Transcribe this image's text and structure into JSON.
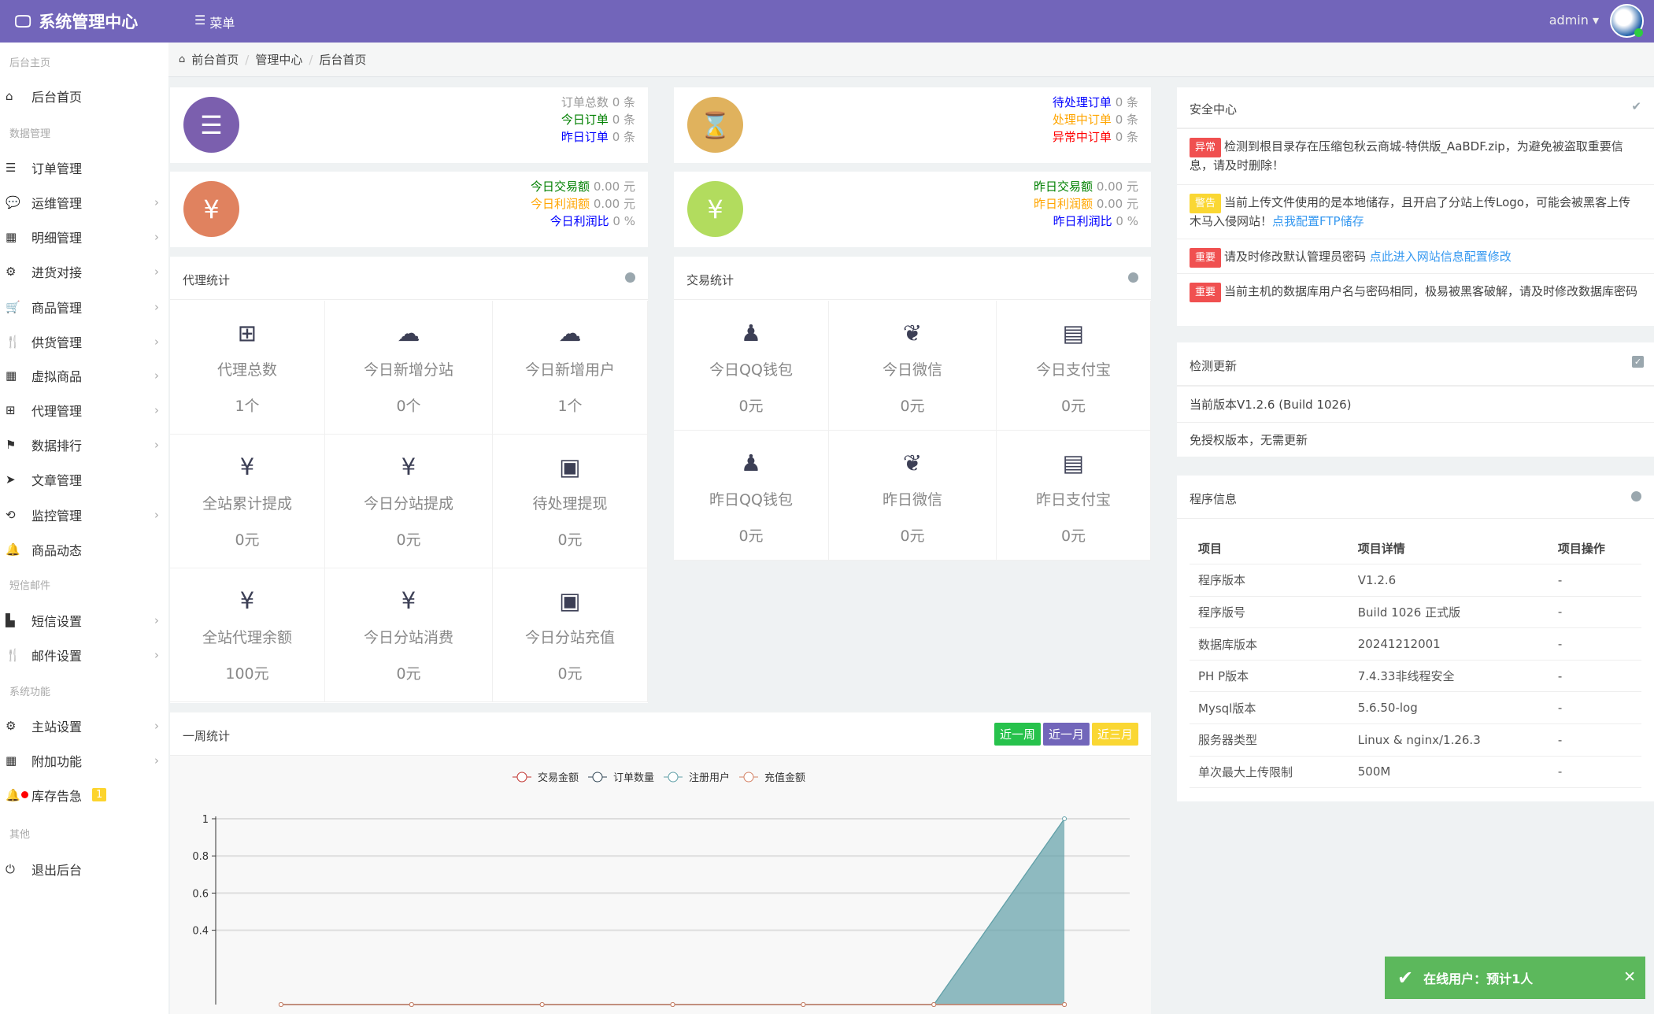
{
  "header": {
    "title": "系统管理中心",
    "menu_label": "菜单",
    "user": "admin"
  },
  "sidebar": {
    "sections": [
      {
        "label": "后台主页",
        "items": [
          {
            "label": "后台首页",
            "icon": "home-icon",
            "arrow": false
          }
        ]
      },
      {
        "label": "数据管理",
        "items": [
          {
            "label": "订单管理",
            "icon": "list-icon",
            "arrow": false
          },
          {
            "label": "运维管理",
            "icon": "comments-icon",
            "arrow": true
          },
          {
            "label": "明细管理",
            "icon": "calendar-icon",
            "arrow": true
          },
          {
            "label": "进货对接",
            "icon": "cogs-icon",
            "arrow": true
          },
          {
            "label": "商品管理",
            "icon": "cart-icon",
            "arrow": true
          },
          {
            "label": "供货管理",
            "icon": "cutlery-icon",
            "arrow": true
          },
          {
            "label": "虚拟商品",
            "icon": "grid-icon",
            "arrow": true
          },
          {
            "label": "代理管理",
            "icon": "sitemap-icon",
            "arrow": true
          },
          {
            "label": "数据排行",
            "icon": "flag-icon",
            "arrow": true
          },
          {
            "label": "文章管理",
            "icon": "send-icon",
            "arrow": false
          },
          {
            "label": "监控管理",
            "icon": "retweet-icon",
            "arrow": true
          },
          {
            "label": "商品动态",
            "icon": "bell-icon",
            "arrow": false
          }
        ]
      },
      {
        "label": "短信邮件",
        "items": [
          {
            "label": "短信设置",
            "icon": "chart-icon",
            "arrow": true
          },
          {
            "label": "邮件设置",
            "icon": "cutlery-icon",
            "arrow": true
          }
        ]
      },
      {
        "label": "系统功能",
        "items": [
          {
            "label": "主站设置",
            "icon": "gear-icon",
            "arrow": true
          },
          {
            "label": "附加功能",
            "icon": "calendar-icon",
            "arrow": true
          },
          {
            "label": "库存告急",
            "icon": "bell-icon",
            "arrow": false,
            "badge": "1"
          }
        ]
      },
      {
        "label": "其他",
        "items": [
          {
            "label": "退出后台",
            "icon": "power-icon",
            "arrow": false
          }
        ]
      }
    ]
  },
  "breadcrumb": [
    "前台首页",
    "管理中心",
    "后台首页"
  ],
  "summary": [
    {
      "color": "#7b5fae",
      "icon": "list-ol-icon",
      "glyph": "☰",
      "rows": [
        {
          "label": "订单总数",
          "value": "0 条",
          "color": "#999"
        },
        {
          "label": "今日订单",
          "value": "0 条",
          "color": "#008000"
        },
        {
          "label": "昨日订单",
          "value": "0 条",
          "color": "#0000ff"
        }
      ]
    },
    {
      "color": "#e0b25d",
      "icon": "hourglass-icon",
      "glyph": "⌛",
      "rows": [
        {
          "label": "待处理订单",
          "value": "0 条",
          "color": "#0000ff"
        },
        {
          "label": "处理中订单",
          "value": "0 条",
          "color": "#ffa500"
        },
        {
          "label": "异常中订单",
          "value": "0 条",
          "color": "#ff0000"
        }
      ]
    },
    {
      "color": "#e0825f",
      "icon": "yen-icon",
      "glyph": "¥",
      "rows": [
        {
          "label": "今日交易额",
          "value": "0.00 元",
          "color": "#008000"
        },
        {
          "label": "今日利润额",
          "value": "0.00 元",
          "color": "#ffa500"
        },
        {
          "label": "今日利润比",
          "value": "0 %",
          "color": "#0000ff"
        }
      ]
    },
    {
      "color": "#b2dc5e",
      "icon": "yen-icon",
      "glyph": "¥",
      "rows": [
        {
          "label": "昨日交易额",
          "value": "0.00 元",
          "color": "#008000"
        },
        {
          "label": "昨日利润额",
          "value": "0.00 元",
          "color": "#ffa500"
        },
        {
          "label": "昨日利润比",
          "value": "0 %",
          "color": "#0000ff"
        }
      ]
    }
  ],
  "agent_stats": {
    "title": "代理统计",
    "cells": [
      {
        "icon": "sitemap-icon",
        "glyph": "⊞",
        "label": "代理总数",
        "value": "1个"
      },
      {
        "icon": "cloud-icon",
        "glyph": "☁",
        "label": "今日新增分站",
        "value": "0个"
      },
      {
        "icon": "cloud-icon",
        "glyph": "☁",
        "label": "今日新增用户",
        "value": "1个"
      },
      {
        "icon": "yen-icon",
        "glyph": "¥",
        "label": "全站累计提成",
        "value": "0元"
      },
      {
        "icon": "yen-icon",
        "glyph": "¥",
        "label": "今日分站提成",
        "value": "0元"
      },
      {
        "icon": "money-icon",
        "glyph": "▣",
        "label": "待处理提现",
        "value": "0元"
      },
      {
        "icon": "yen-icon",
        "glyph": "¥",
        "label": "全站代理余额",
        "value": "100元"
      },
      {
        "icon": "yen-icon",
        "glyph": "¥",
        "label": "今日分站消费",
        "value": "0元"
      },
      {
        "icon": "money-icon",
        "glyph": "▣",
        "label": "今日分站充值",
        "value": "0元"
      }
    ]
  },
  "trade_stats": {
    "title": "交易统计",
    "cells": [
      {
        "icon": "qq-icon",
        "glyph": "♟",
        "label": "今日QQ钱包",
        "value": "0元"
      },
      {
        "icon": "wechat-icon",
        "glyph": "❦",
        "label": "今日微信",
        "value": "0元"
      },
      {
        "icon": "credit-card-icon",
        "glyph": "▤",
        "label": "今日支付宝",
        "value": "0元"
      },
      {
        "icon": "qq-icon",
        "glyph": "♟",
        "label": "昨日QQ钱包",
        "value": "0元"
      },
      {
        "icon": "wechat-icon",
        "glyph": "❦",
        "label": "昨日微信",
        "value": "0元"
      },
      {
        "icon": "credit-card-icon",
        "glyph": "▤",
        "label": "昨日支付宝",
        "value": "0元"
      }
    ]
  },
  "security": {
    "title": "安全中心",
    "items": [
      {
        "tag": "异常",
        "tag_color": "#f05050",
        "text": "检测到根目录存在压缩包秋云商城-特供版_AaBDF.zip，为避免被盗取重要信息，请及时删除！",
        "link": ""
      },
      {
        "tag": "警告",
        "tag_color": "#fad733",
        "text": "当前上传文件使用的是本地储存，且开启了分站上传Logo，可能会被黑客上传木马入侵网站！",
        "link": "点我配置FTP储存"
      },
      {
        "tag": "重要",
        "tag_color": "#f05050",
        "text": "请及时修改默认管理员密码 ",
        "link": "点此进入网站信息配置修改"
      },
      {
        "tag": "重要",
        "tag_color": "#f05050",
        "text": "当前主机的数据库用户名与密码相同，极易被黑客破解，请及时修改数据库密码",
        "link": ""
      }
    ]
  },
  "update": {
    "title": "检测更新",
    "current": "当前版本V1.2.6 (Build 1026)",
    "note": "免授权版本，无需更新"
  },
  "program": {
    "title": "程序信息",
    "headers": [
      "项目",
      "项目详情",
      "项目操作"
    ],
    "rows": [
      [
        "程序版本",
        "V1.2.6",
        "-"
      ],
      [
        "程序版号",
        "Build 1026 正式版",
        "-"
      ],
      [
        "数据库版本",
        "20241212001",
        "-"
      ],
      [
        "PH P版本",
        "7.4.33非线程安全",
        "-"
      ],
      [
        "Mysql版本",
        "5.6.50-log",
        "-"
      ],
      [
        "服务器类型",
        "Linux & nginx/1.26.3",
        "-"
      ],
      [
        "单次最大上传限制",
        "500M",
        "-"
      ]
    ]
  },
  "weekly": {
    "title": "一周统计",
    "buttons": [
      {
        "label": "近一周",
        "color": "#27c24c"
      },
      {
        "label": "近一月",
        "color": "#7266ba"
      },
      {
        "label": "近三月",
        "color": "#fad733"
      }
    ]
  },
  "chart_data": {
    "type": "area",
    "ylim": [
      0,
      1
    ],
    "yticks": [
      "1",
      "0.8",
      "0.6",
      "0.4"
    ],
    "grid": true,
    "legend": "top",
    "series": [
      {
        "name": "交易金额",
        "color": "#c23531",
        "values": [
          0,
          0,
          0,
          0,
          0,
          0,
          0
        ]
      },
      {
        "name": "订单数量",
        "color": "#2f4554",
        "values": [
          0,
          0,
          0,
          0,
          0,
          0,
          0
        ]
      },
      {
        "name": "注册用户",
        "color": "#61a0a8",
        "values": [
          0,
          0,
          0,
          0,
          0,
          0,
          1
        ]
      },
      {
        "name": "充值金额",
        "color": "#d48265",
        "values": [
          0,
          0,
          0,
          0,
          0,
          0,
          0
        ]
      }
    ]
  },
  "toast": {
    "text": "在线用户：预计1人"
  }
}
